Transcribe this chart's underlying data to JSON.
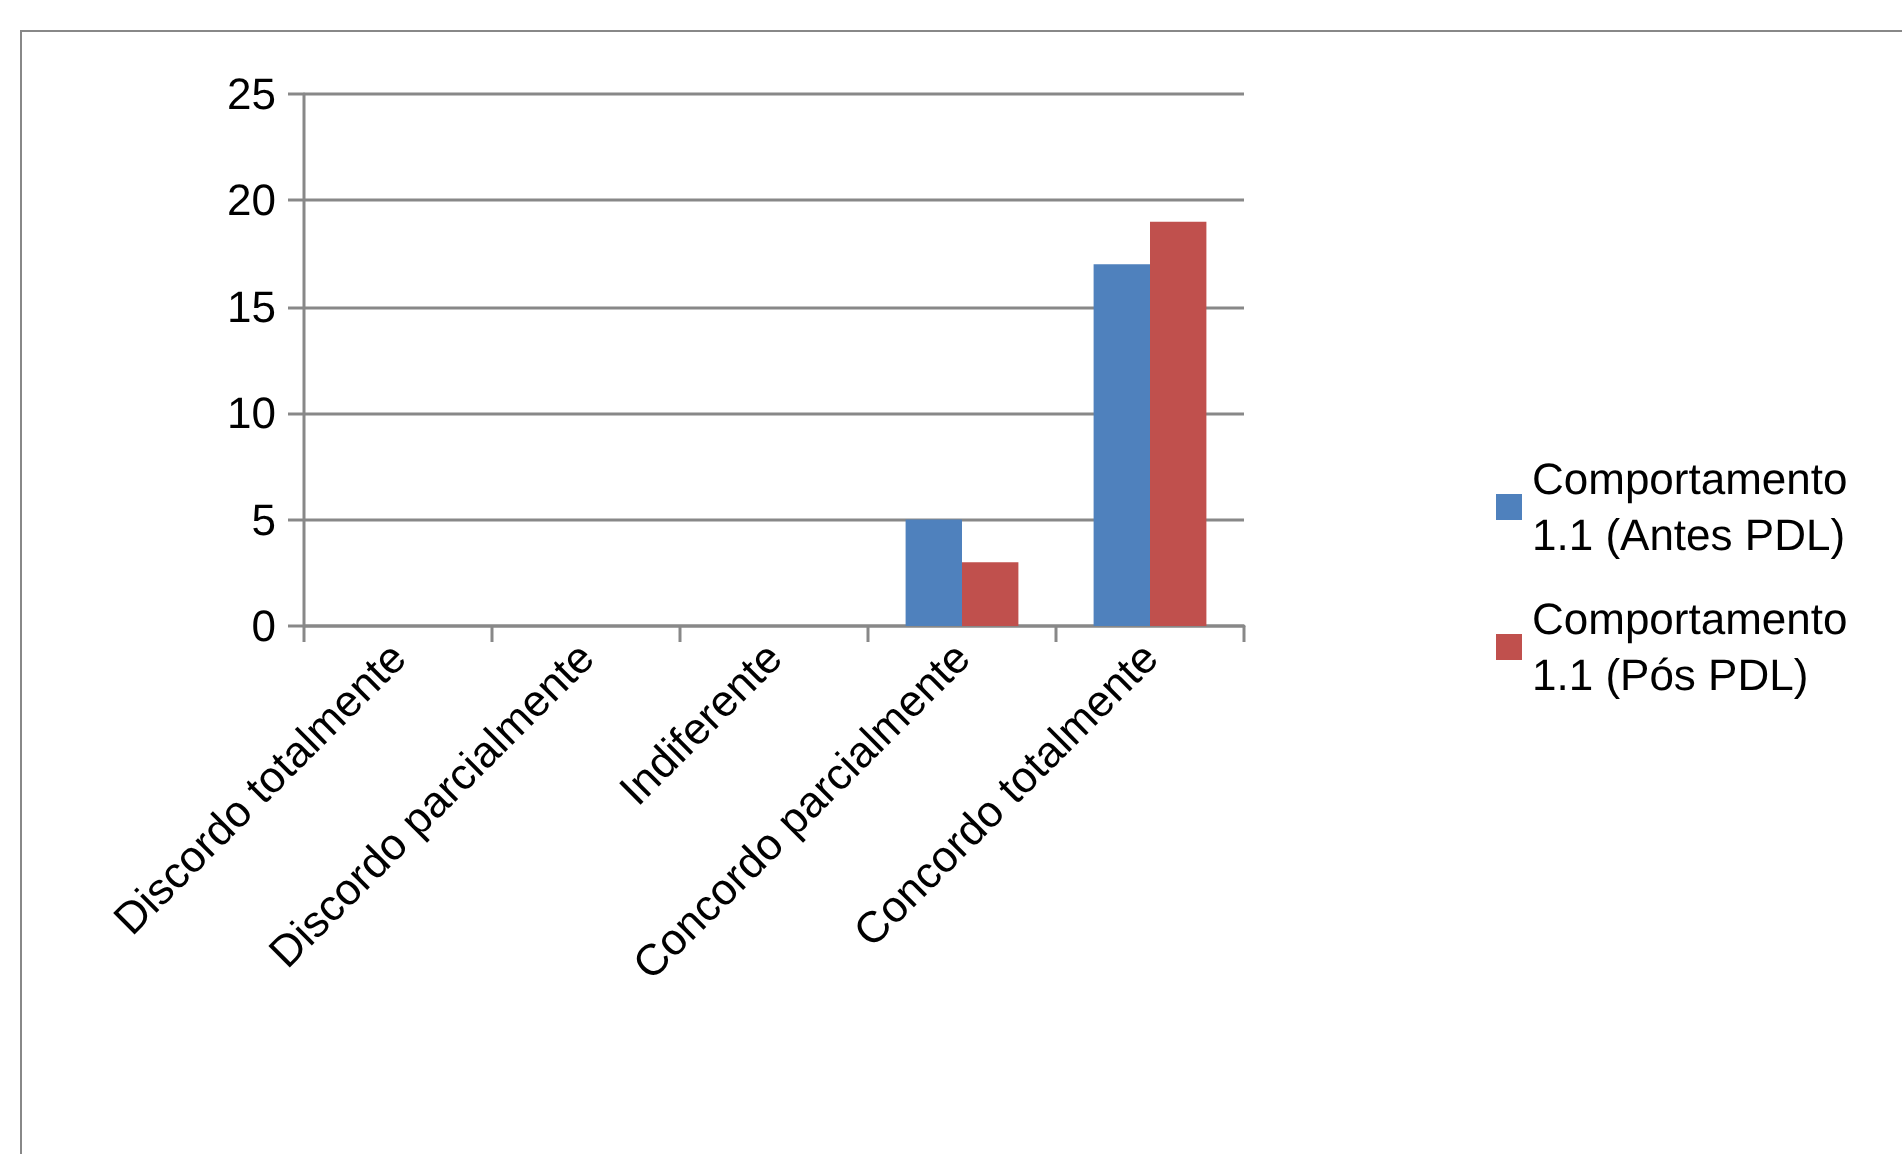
{
  "chart_data": {
    "type": "bar",
    "categories": [
      "Discordo totalmente",
      "Discordo parcialmente",
      "Indiferente",
      "Concordo parcialmente",
      "Concordo totalmente"
    ],
    "series": [
      {
        "name": "Comportamento 1.1 (Antes PDL)",
        "color": "#4f81bd",
        "values": [
          0,
          0,
          0,
          5,
          17
        ]
      },
      {
        "name": "Comportamento 1.1 (Pós PDL)",
        "color": "#c0504d",
        "values": [
          0,
          0,
          0,
          3,
          19
        ]
      }
    ],
    "ylim": [
      0,
      25
    ],
    "yticks": [
      0,
      5,
      10,
      15,
      20,
      25
    ],
    "grid": "y",
    "legend": "right"
  }
}
